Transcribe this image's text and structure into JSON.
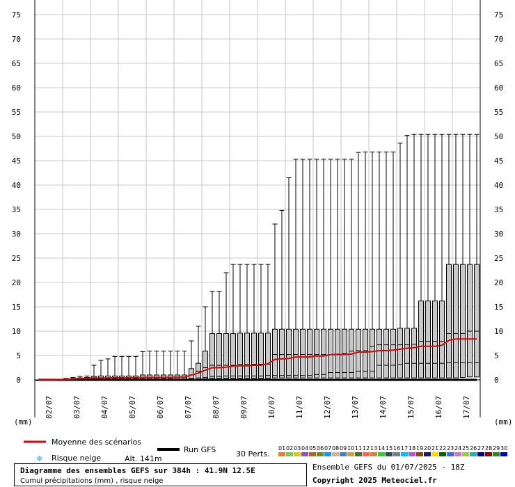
{
  "chart_data": {
    "type": "box",
    "y_ticks": [
      "0",
      "5",
      "10",
      "15",
      "20",
      "25",
      "30",
      "35",
      "40",
      "45",
      "50",
      "55",
      "60",
      "65",
      "70",
      "75"
    ],
    "ylim": [
      0,
      75
    ],
    "yunit": "(mm)",
    "x_labels": [
      "02/07",
      "03/07",
      "04/07",
      "05/07",
      "06/07",
      "07/07",
      "08/07",
      "09/07",
      "10/07",
      "11/07",
      "12/07",
      "13/07",
      "14/07",
      "15/07",
      "16/07",
      "17/07"
    ],
    "grid": true,
    "steps": 64,
    "box_max": [
      0,
      0,
      0,
      0.1,
      0.3,
      0.5,
      0.7,
      0.8,
      3,
      4,
      4.3,
      4.8,
      4.8,
      4.8,
      4.8,
      5.8,
      5.9,
      5.9,
      5.9,
      5.9,
      5.9,
      5.9,
      8,
      11,
      15,
      18.2,
      18.2,
      22,
      23.7,
      23.7,
      23.7,
      23.7,
      23.7,
      23.7,
      32,
      34.8,
      41.5,
      45.3,
      45.3,
      45.3,
      45.3,
      45.3,
      45.3,
      45.3,
      45.3,
      45.3,
      46.7,
      46.8,
      46.8,
      46.8,
      46.8,
      46.8,
      48.6,
      50.2,
      50.4,
      50.4,
      50.4,
      50.4,
      50.4,
      50.4,
      50.4,
      50.4,
      50.4,
      50.4
    ],
    "box_q3": [
      0,
      0,
      0,
      0.05,
      0.2,
      0.3,
      0.4,
      0.5,
      0.7,
      0.8,
      0.8,
      0.8,
      0.8,
      0.8,
      0.8,
      1,
      1,
      1,
      1,
      1,
      1,
      1,
      2.3,
      3.4,
      5.9,
      9.5,
      9.5,
      9.5,
      9.5,
      9.6,
      9.6,
      9.6,
      9.6,
      9.6,
      10.4,
      10.4,
      10.4,
      10.4,
      10.4,
      10.4,
      10.4,
      10.4,
      10.4,
      10.4,
      10.4,
      10.4,
      10.4,
      10.4,
      10.4,
      10.4,
      10.4,
      10.4,
      10.6,
      10.6,
      10.6,
      16.2,
      16.2,
      16.2,
      16.2,
      23.7,
      23.7,
      23.7,
      23.7,
      23.7
    ],
    "box_q1": [
      0,
      0,
      0,
      0,
      0,
      0,
      0,
      0,
      0,
      0,
      0,
      0,
      0,
      0,
      0,
      0,
      0,
      0,
      0,
      0,
      0,
      0,
      0,
      0,
      0.2,
      0.3,
      0.3,
      0.3,
      0.3,
      0.3,
      0.3,
      0.3,
      0.3,
      0.3,
      0.4,
      0.4,
      0.4,
      0.4,
      0.4,
      0.4,
      0.4,
      0.4,
      0.4,
      0.4,
      0.4,
      0.4,
      0.4,
      0.4,
      0.4,
      0.4,
      0.4,
      0.4,
      0.4,
      0.4,
      0.4,
      0.4,
      0.4,
      0.4,
      0.4,
      0.4,
      0.4,
      0.5,
      0.6,
      0.6
    ],
    "box_p85": [
      0,
      0,
      0,
      0,
      0.1,
      0.1,
      0.1,
      0.2,
      0.3,
      0.3,
      0.3,
      0.3,
      0.3,
      0.3,
      0.3,
      0.4,
      0.4,
      0.4,
      0.4,
      0.4,
      0.5,
      0.5,
      1,
      1.8,
      2.5,
      3,
      3,
      3,
      3,
      3.2,
      3.2,
      3.2,
      3.2,
      3.2,
      5.2,
      5.2,
      5.2,
      5.2,
      5.2,
      5.2,
      5.2,
      5.2,
      5.2,
      5.3,
      5.4,
      5.9,
      6,
      6,
      6.9,
      7.2,
      7.2,
      7.2,
      7.2,
      7.2,
      7.3,
      7.9,
      7.9,
      7.9,
      7.9,
      9.5,
      9.5,
      9.5,
      10,
      10
    ],
    "box_median": [
      0,
      0,
      0,
      0,
      0,
      0,
      0,
      0,
      0.1,
      0.1,
      0.1,
      0.1,
      0.1,
      0.1,
      0.1,
      0.2,
      0.2,
      0.2,
      0.2,
      0.2,
      0.2,
      0.2,
      0.3,
      0.4,
      0.5,
      0.7,
      0.7,
      0.8,
      0.8,
      0.8,
      0.8,
      0.8,
      0.8,
      0.9,
      0.9,
      0.9,
      0.9,
      0.9,
      0.9,
      0.9,
      1.1,
      1.1,
      1.5,
      1.5,
      1.5,
      1.5,
      1.8,
      1.8,
      1.8,
      3,
      3,
      3,
      3.2,
      3.4,
      3.4,
      3.4,
      3.4,
      3.4,
      3.4,
      3.5,
      3.5,
      3.5,
      3.5,
      3.5
    ],
    "mean": [
      0,
      0,
      0,
      0.05,
      0.1,
      0.2,
      0.3,
      0.3,
      0.4,
      0.4,
      0.4,
      0.45,
      0.45,
      0.45,
      0.45,
      0.5,
      0.5,
      0.5,
      0.5,
      0.5,
      0.55,
      0.55,
      1,
      1.4,
      2,
      2.5,
      2.5,
      2.6,
      2.8,
      2.9,
      2.9,
      3,
      3,
      3.3,
      4.2,
      4.3,
      4.4,
      4.7,
      4.7,
      4.7,
      4.9,
      4.9,
      5.2,
      5.2,
      5.2,
      5.3,
      5.7,
      5.7,
      5.8,
      6,
      6,
      6.1,
      6.3,
      6.5,
      6.6,
      6.9,
      6.9,
      6.9,
      7.1,
      8.1,
      8.4,
      8.4,
      8.4,
      8.4
    ],
    "gfs_run": [
      0,
      0,
      0,
      0,
      0,
      0,
      0,
      0,
      0,
      0,
      0,
      0,
      0,
      0,
      0,
      0,
      0,
      0,
      0,
      0,
      0,
      0,
      0,
      0,
      0,
      0,
      0,
      0,
      0,
      0,
      0,
      0,
      0,
      0,
      0,
      0,
      0,
      0,
      0,
      0,
      0,
      0,
      0,
      0,
      0,
      0,
      0,
      0,
      0,
      0,
      0,
      0,
      0,
      0,
      0,
      0,
      0,
      0,
      0,
      0,
      0,
      0,
      0,
      0
    ]
  },
  "legend": {
    "mean_label": "Moyenne des scénarios",
    "gfs_label": "Run GFS",
    "snow_label": "Risque neige",
    "altitude": "Alt. 141m",
    "perts_label": "30 Perts.",
    "mean_color": "#e00000",
    "gfs_color": "#000000",
    "box_fill": "#c8c8c8"
  },
  "perturbations": [
    {
      "id": "01",
      "color": "#e87d2a"
    },
    {
      "id": "02",
      "color": "#7ec85a"
    },
    {
      "id": "03",
      "color": "#e6c21a"
    },
    {
      "id": "04",
      "color": "#8b52c8"
    },
    {
      "id": "05",
      "color": "#b5651d"
    },
    {
      "id": "06",
      "color": "#6b8e23"
    },
    {
      "id": "07",
      "color": "#1e90ff"
    },
    {
      "id": "08",
      "color": "#d2b48c"
    },
    {
      "id": "09",
      "color": "#4682b4"
    },
    {
      "id": "10",
      "color": "#c8a050"
    },
    {
      "id": "11",
      "color": "#556b2f"
    },
    {
      "id": "12",
      "color": "#ff6347"
    },
    {
      "id": "13",
      "color": "#cd853f"
    },
    {
      "id": "14",
      "color": "#32cd32"
    },
    {
      "id": "15",
      "color": "#2f4f4f"
    },
    {
      "id": "16",
      "color": "#708090"
    },
    {
      "id": "17",
      "color": "#00bfff"
    },
    {
      "id": "18",
      "color": "#ba55d3"
    },
    {
      "id": "19",
      "color": "#8b4513"
    },
    {
      "id": "20",
      "color": "#191970"
    },
    {
      "id": "21",
      "color": "#ffd700"
    },
    {
      "id": "22",
      "color": "#006400"
    },
    {
      "id": "23",
      "color": "#4169e1"
    },
    {
      "id": "24",
      "color": "#da70d6"
    },
    {
      "id": "25",
      "color": "#9acd32"
    },
    {
      "id": "26",
      "color": "#20b2aa"
    },
    {
      "id": "27",
      "color": "#00008b"
    },
    {
      "id": "28",
      "color": "#8b0000"
    },
    {
      "id": "29",
      "color": "#228b22"
    },
    {
      "id": "30",
      "color": "#0000cd"
    }
  ],
  "title": {
    "main": "Diagramme des ensembles GEFS sur 384h : 41.9N 12.5E",
    "sub": "Cumul précipitations (mm) , risque neige"
  },
  "info": {
    "run": "Ensemble GEFS du 01/07/2025 - 18Z",
    "copyright": "Copyright 2025 Meteociel.fr"
  }
}
